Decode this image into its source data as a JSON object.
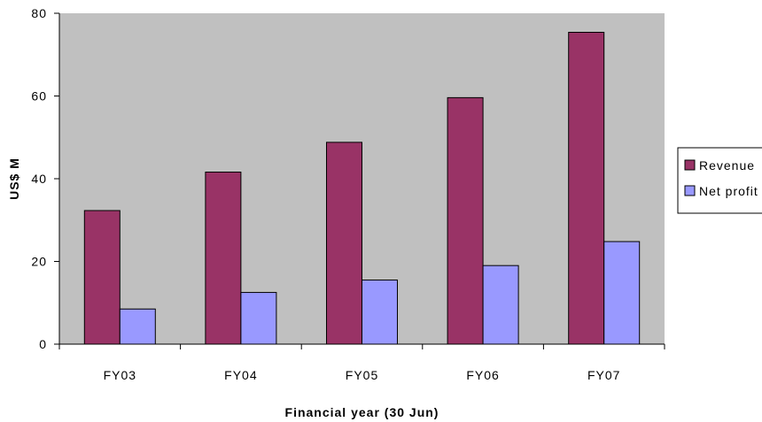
{
  "chart_data": {
    "type": "bar",
    "categories": [
      "FY03",
      "FY04",
      "FY05",
      "FY06",
      "FY07"
    ],
    "series": [
      {
        "name": "Revenue",
        "values": [
          32.3,
          41.6,
          48.8,
          59.6,
          75.4
        ],
        "color": "#993366"
      },
      {
        "name": "Net profit",
        "values": [
          8.5,
          12.5,
          15.5,
          19.0,
          24.8
        ],
        "color": "#9999ff"
      }
    ],
    "title": "",
    "xlabel": "Financial year (30 Jun)",
    "ylabel": "US$ M",
    "ylim": [
      0,
      80
    ],
    "yticks": [
      0,
      20,
      40,
      60,
      80
    ],
    "plot_background": "#c0c0c0",
    "grid": false,
    "legend_position": "right"
  }
}
